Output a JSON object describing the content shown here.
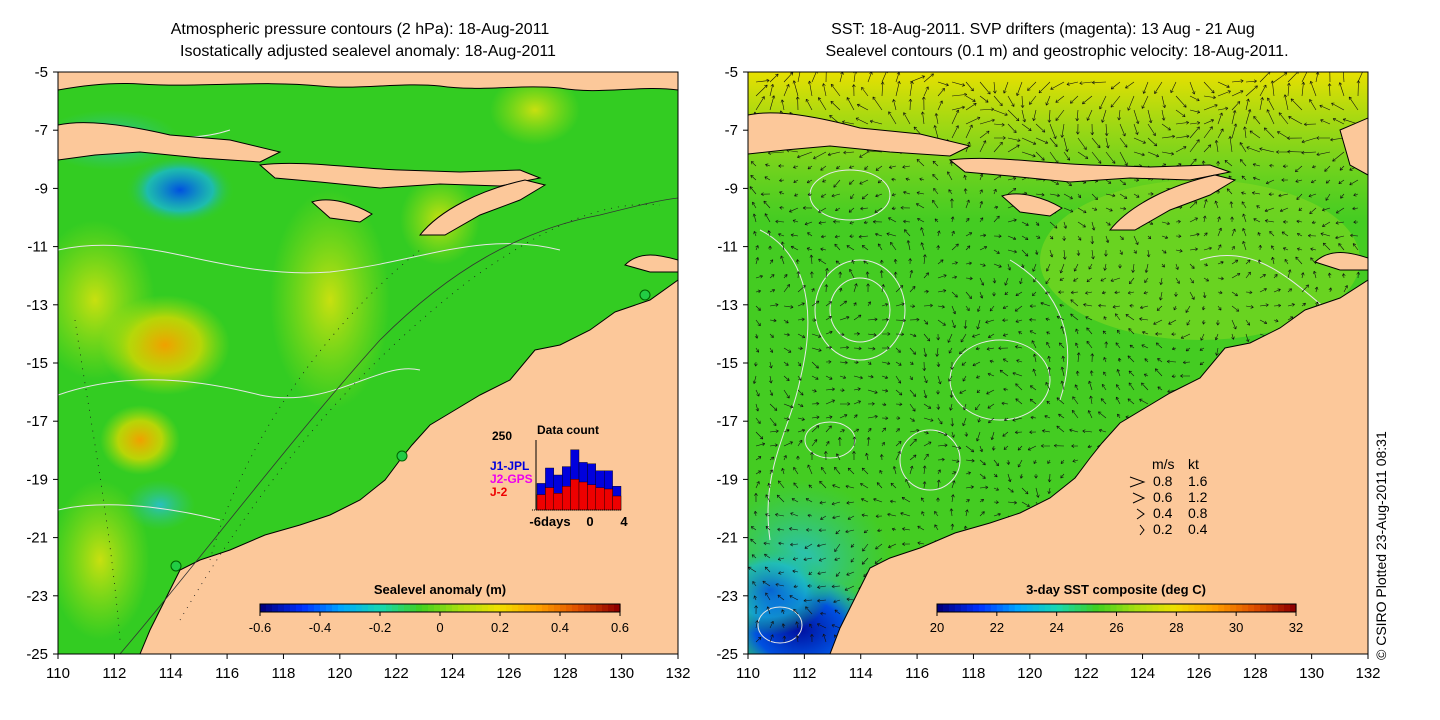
{
  "left_panel": {
    "title_line1": "Atmospheric pressure contours (2 hPa): 18-Aug-2011",
    "title_line2": "Isostatically adjusted sealevel anomaly: 18-Aug-2011",
    "x_ticks": [
      "110",
      "112",
      "114",
      "116",
      "118",
      "120",
      "122",
      "124",
      "126",
      "128",
      "130",
      "132"
    ],
    "y_ticks": [
      "-5",
      "-7",
      "-9",
      "-11",
      "-13",
      "-15",
      "-17",
      "-19",
      "-21",
      "-23",
      "-25"
    ],
    "colorbar": {
      "label": "Sealevel anomaly (m)",
      "ticks": [
        "-0.6",
        "-0.4",
        "-0.2",
        "0",
        "0.2",
        "0.4",
        "0.6"
      ]
    },
    "inset": {
      "title": "Data count",
      "ymax_label": "250",
      "legend": [
        "J1-JPL",
        "J2-GPS",
        "J-2"
      ],
      "legend_colors": [
        "#0000dd",
        "#ee00ee",
        "#ee0000"
      ],
      "xtick_labels": [
        "-6days",
        "0",
        "4"
      ],
      "blue_counts": [
        95,
        150,
        125,
        155,
        215,
        170,
        165,
        140,
        140,
        85
      ],
      "red_counts": [
        55,
        80,
        60,
        85,
        110,
        100,
        90,
        80,
        75,
        50
      ]
    }
  },
  "right_panel": {
    "title_line1": "SST: 18-Aug-2011. SVP drifters (magenta): 13 Aug - 21 Aug",
    "title_line2": "Sealevel contours (0.1 m) and geostrophic velocity: 18-Aug-2011.",
    "x_ticks": [
      "110",
      "112",
      "114",
      "116",
      "118",
      "120",
      "122",
      "124",
      "126",
      "128",
      "130",
      "132"
    ],
    "y_ticks": [
      "-5",
      "-7",
      "-9",
      "-11",
      "-13",
      "-15",
      "-17",
      "-19",
      "-21",
      "-23",
      "-25"
    ],
    "colorbar": {
      "label": "3-day SST composite (deg C)",
      "ticks": [
        "20",
        "22",
        "24",
        "26",
        "28",
        "30",
        "32"
      ]
    },
    "velocity_legend": {
      "header_ms": "m/s",
      "header_kt": "kt",
      "rows": [
        {
          "ms": "0.8",
          "kt": "1.6"
        },
        {
          "ms": "0.6",
          "kt": "1.2"
        },
        {
          "ms": "0.4",
          "kt": "0.8"
        },
        {
          "ms": "0.2",
          "kt": "0.4"
        }
      ]
    }
  },
  "credit": "© CSIRO Plotted 23-Aug-2011 08:31",
  "colors": {
    "land": "#fcc89a",
    "sea_base": "#33cc22",
    "contour": "#dddddd",
    "cbar_left": [
      "#000080",
      "#0030ff",
      "#00a8ff",
      "#18d8b0",
      "#40d020",
      "#a8e010",
      "#f0e000",
      "#ffa000",
      "#e05000",
      "#900000"
    ],
    "cbar_right": [
      "#000080",
      "#0030ff",
      "#00a8ff",
      "#18d8b0",
      "#40d020",
      "#a8e010",
      "#f0e000",
      "#ffa000",
      "#e05000",
      "#900000"
    ]
  }
}
